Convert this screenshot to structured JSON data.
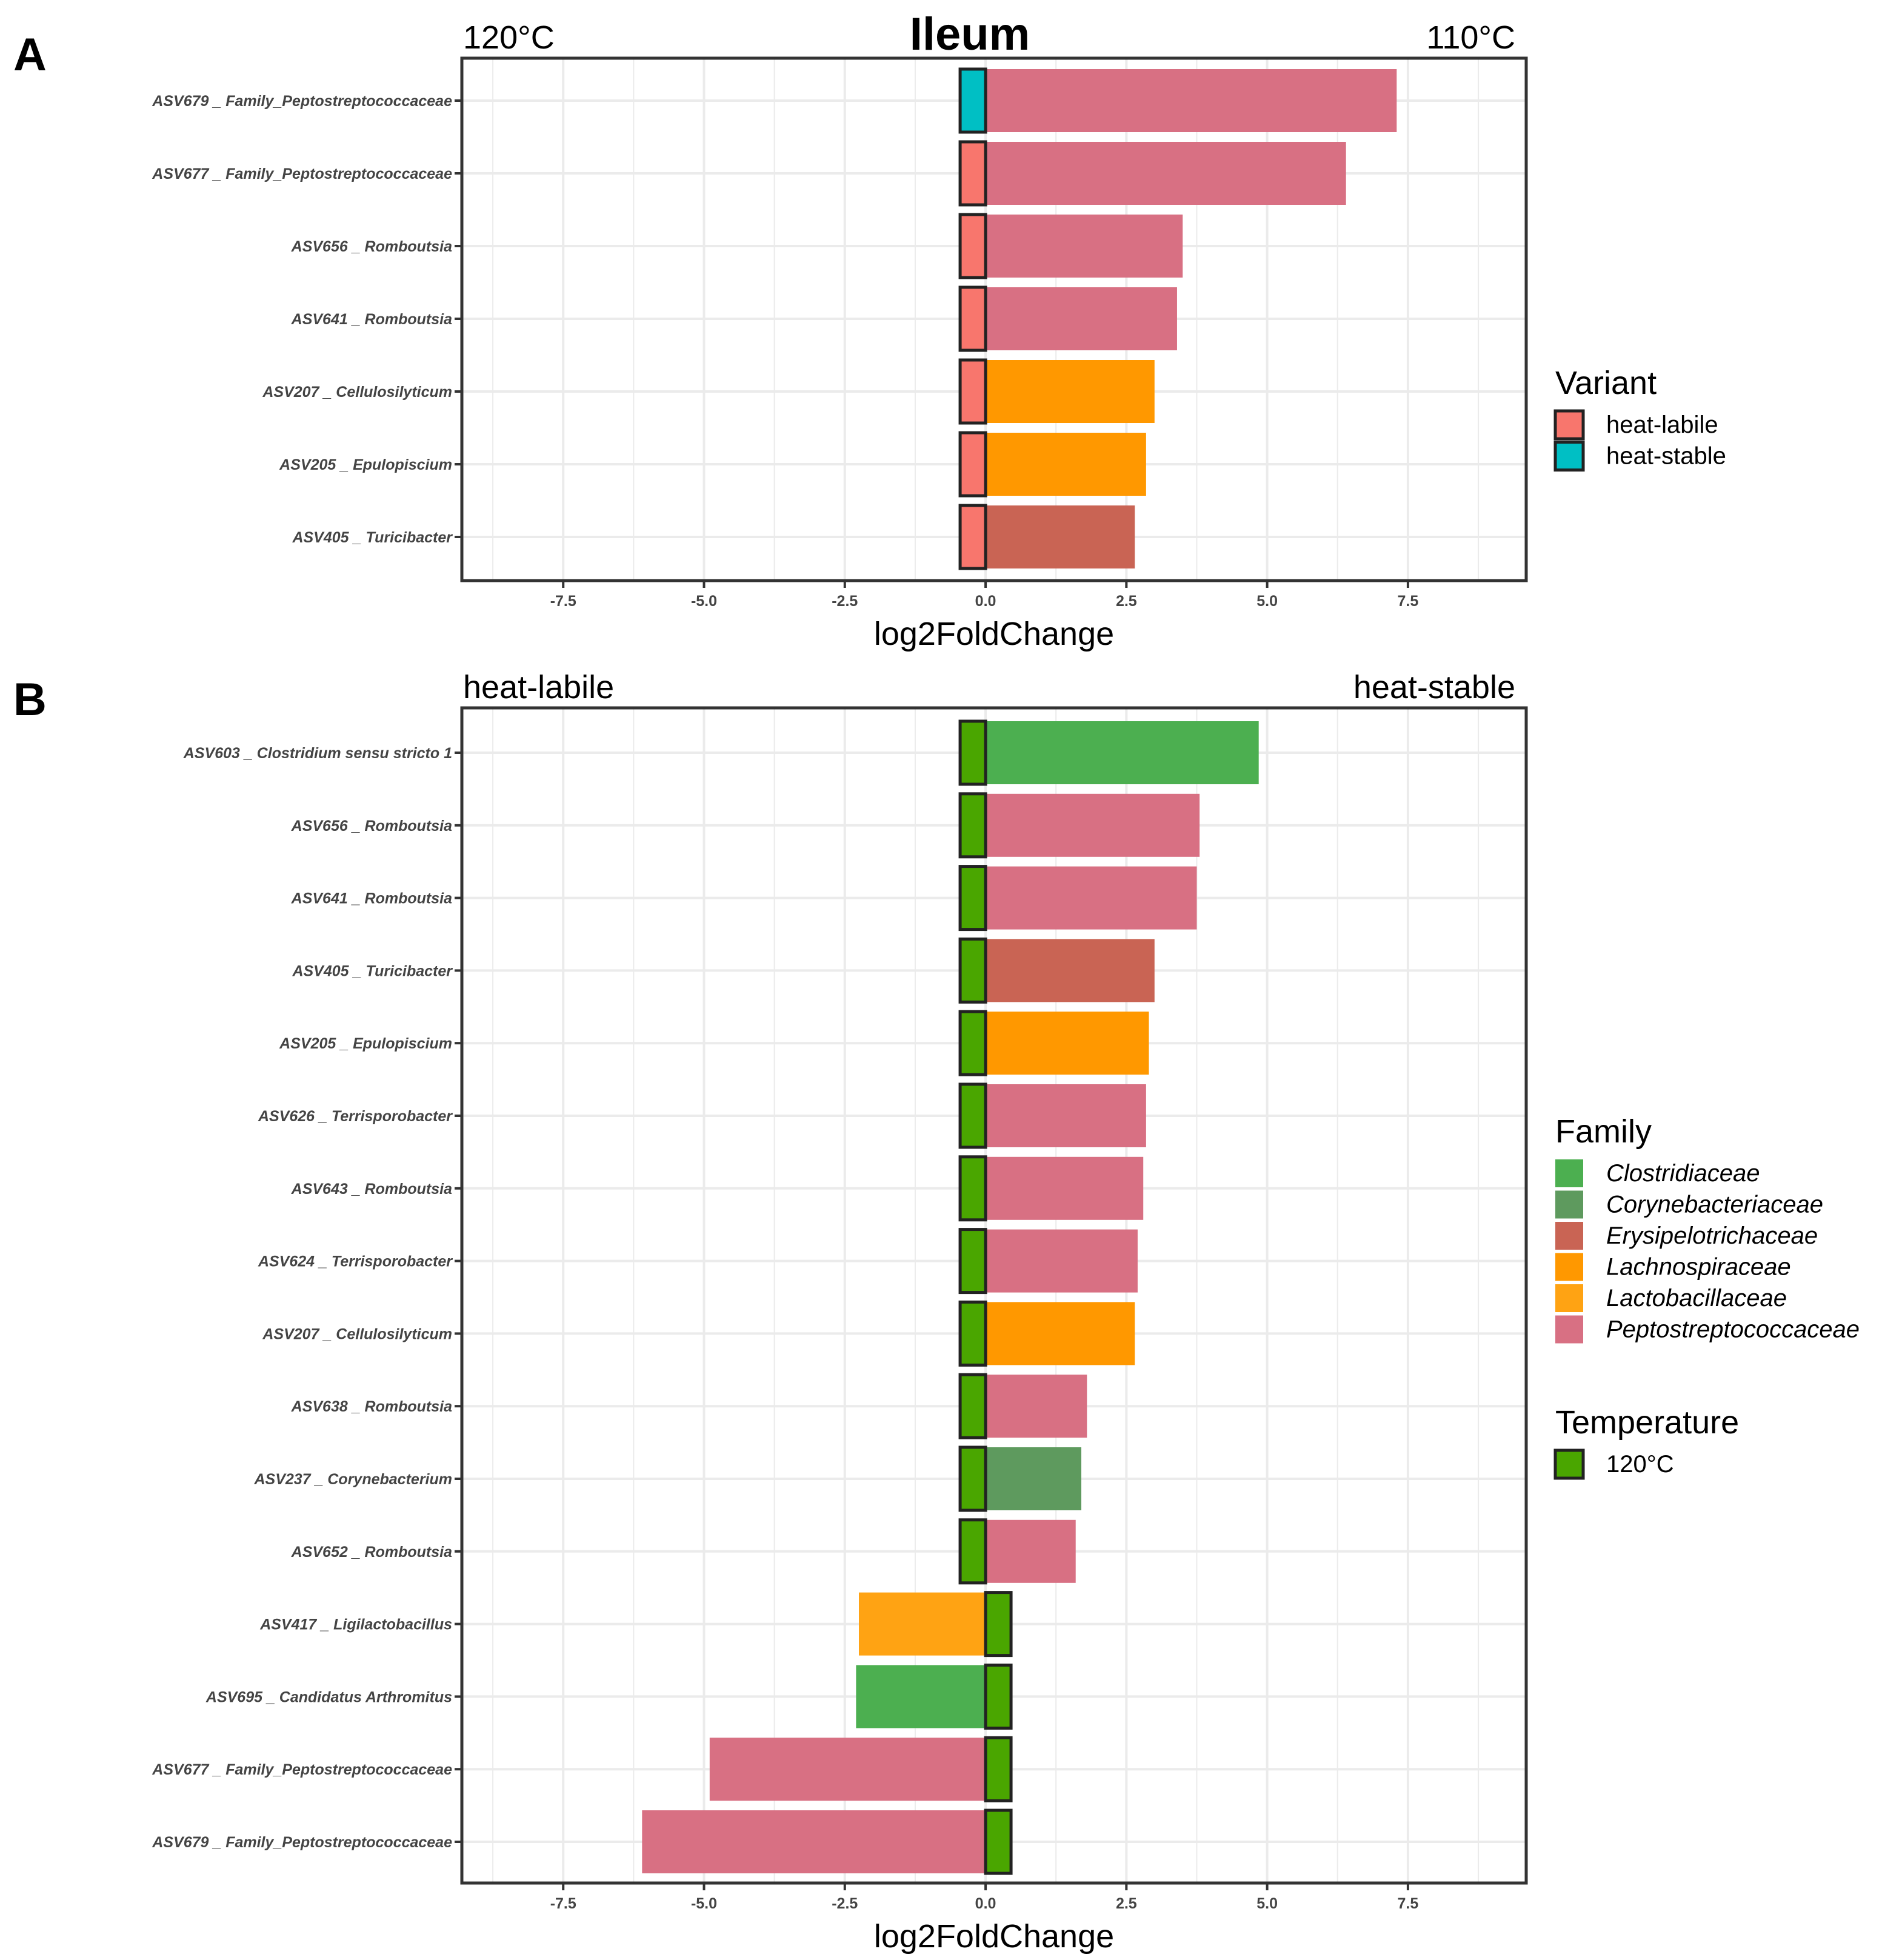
{
  "title": "Ileum",
  "colors": {
    "heat_labile": "#F8766D",
    "heat_stable": "#00BFC4",
    "temp_120": "#4AA600",
    "Clostridiaceae": "#4CAF50",
    "Corynebacteriaceae": "#5E9A5E",
    "Erysipelotrichaceae": "#C96454",
    "Lachnospiraceae": "#FF9800",
    "Lactobacillaceae": "#FFA313",
    "Peptostreptococcaceae": "#D87083"
  },
  "chart_data": [
    {
      "type": "bar",
      "orientation": "horizontal",
      "panel_letter": "A",
      "title": "Ileum",
      "left_annotation": "120°C",
      "right_annotation": "110°C",
      "xlabel": "log2FoldChange",
      "ylabel": "",
      "xlim": [
        -9.3,
        9.6
      ],
      "xticks": [
        -7.5,
        -5.0,
        -2.5,
        0.0,
        2.5,
        5.0,
        7.5
      ],
      "xtick_labels": [
        "-7.5",
        "-5.0",
        "-2.5",
        "0.0",
        "2.5",
        "5.0",
        "7.5"
      ],
      "grid": true,
      "categories": [
        "ASV679 _ Family_Peptostreptococcaceae",
        "ASV677 _ Family_Peptostreptococcaceae",
        "ASV656 _ Romboutsia",
        "ASV641 _ Romboutsia",
        "ASV207 _ Cellulosilyticum",
        "ASV205 _ Epulopiscium",
        "ASV405 _ Turicibacter"
      ],
      "values": [
        7.3,
        6.4,
        3.5,
        3.4,
        3.0,
        2.85,
        2.65
      ],
      "family": [
        "Peptostreptococcaceae",
        "Peptostreptococcaceae",
        "Peptostreptococcaceae",
        "Peptostreptococcaceae",
        "Lachnospiraceae",
        "Lachnospiraceae",
        "Erysipelotrichaceae"
      ],
      "marker_group": [
        "heat_stable",
        "heat_labile",
        "heat_labile",
        "heat_labile",
        "heat_labile",
        "heat_labile",
        "heat_labile"
      ],
      "legend": {
        "title": "Variant",
        "entries": [
          {
            "label": "heat-labile",
            "color_key": "heat_labile"
          },
          {
            "label": "heat-stable",
            "color_key": "heat_stable"
          }
        ]
      }
    },
    {
      "type": "bar",
      "orientation": "horizontal",
      "panel_letter": "B",
      "left_annotation": "heat-labile",
      "right_annotation": "heat-stable",
      "xlabel": "log2FoldChange",
      "ylabel": "",
      "xlim": [
        -9.3,
        9.6
      ],
      "xticks": [
        -7.5,
        -5.0,
        -2.5,
        0.0,
        2.5,
        5.0,
        7.5
      ],
      "xtick_labels": [
        "-7.5",
        "-5.0",
        "-2.5",
        "0.0",
        "2.5",
        "5.0",
        "7.5"
      ],
      "grid": true,
      "categories": [
        "ASV603 _ Clostridium sensu stricto 1",
        "ASV656 _ Romboutsia",
        "ASV641 _ Romboutsia",
        "ASV405 _ Turicibacter",
        "ASV205 _ Epulopiscium",
        "ASV626 _ Terrisporobacter",
        "ASV643 _ Romboutsia",
        "ASV624 _ Terrisporobacter",
        "ASV207 _ Cellulosilyticum",
        "ASV638 _ Romboutsia",
        "ASV237 _ Corynebacterium",
        "ASV652 _ Romboutsia",
        "ASV417 _ Ligilactobacillus",
        "ASV695 _ Candidatus Arthromitus",
        "ASV677 _ Family_Peptostreptococcaceae",
        "ASV679 _ Family_Peptostreptococcaceae"
      ],
      "values": [
        4.85,
        3.8,
        3.75,
        3.0,
        2.9,
        2.85,
        2.8,
        2.7,
        2.65,
        1.8,
        1.7,
        1.6,
        -2.25,
        -2.3,
        -4.9,
        -6.1
      ],
      "family": [
        "Clostridiaceae",
        "Peptostreptococcaceae",
        "Peptostreptococcaceae",
        "Erysipelotrichaceae",
        "Lachnospiraceae",
        "Peptostreptococcaceae",
        "Peptostreptococcaceae",
        "Peptostreptococcaceae",
        "Lachnospiraceae",
        "Peptostreptococcaceae",
        "Corynebacteriaceae",
        "Peptostreptococcaceae",
        "Lactobacillaceae",
        "Clostridiaceae",
        "Peptostreptococcaceae",
        "Peptostreptococcaceae"
      ],
      "marker_group": [
        "temp_120",
        "temp_120",
        "temp_120",
        "temp_120",
        "temp_120",
        "temp_120",
        "temp_120",
        "temp_120",
        "temp_120",
        "temp_120",
        "temp_120",
        "temp_120",
        "temp_120",
        "temp_120",
        "temp_120",
        "temp_120"
      ],
      "legend_family": {
        "title": "Family",
        "entries": [
          {
            "label": "Clostridiaceae",
            "color_key": "Clostridiaceae"
          },
          {
            "label": "Corynebacteriaceae",
            "color_key": "Corynebacteriaceae"
          },
          {
            "label": "Erysipelotrichaceae",
            "color_key": "Erysipelotrichaceae"
          },
          {
            "label": "Lachnospiraceae",
            "color_key": "Lachnospiraceae"
          },
          {
            "label": "Lactobacillaceae",
            "color_key": "Lactobacillaceae"
          },
          {
            "label": "Peptostreptococcaceae",
            "color_key": "Peptostreptococcaceae"
          }
        ]
      },
      "legend_temperature": {
        "title": "Temperature",
        "entries": [
          {
            "label": "120°C",
            "color_key": "temp_120"
          }
        ]
      }
    }
  ]
}
